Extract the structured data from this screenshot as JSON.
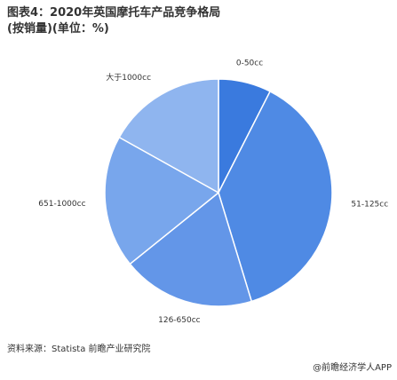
{
  "chart_data": {
    "type": "pie",
    "title": "图表4：2020年英国摩托车产品竞争格局(按销量)(单位：%)",
    "categories": [
      "0-50cc",
      "51-125cc",
      "126-650cc",
      "651-1000cc",
      "大于1000cc"
    ],
    "values": [
      7.5,
      37.8,
      18.9,
      18.9,
      16.9
    ],
    "colors": [
      "#3a7ade",
      "#4f8ae4",
      "#6396e8",
      "#78a6ec",
      "#8fb5ef"
    ],
    "source": "资料来源：Statista 前瞻产业研究院",
    "footer": "@前瞻经济学人APP"
  }
}
